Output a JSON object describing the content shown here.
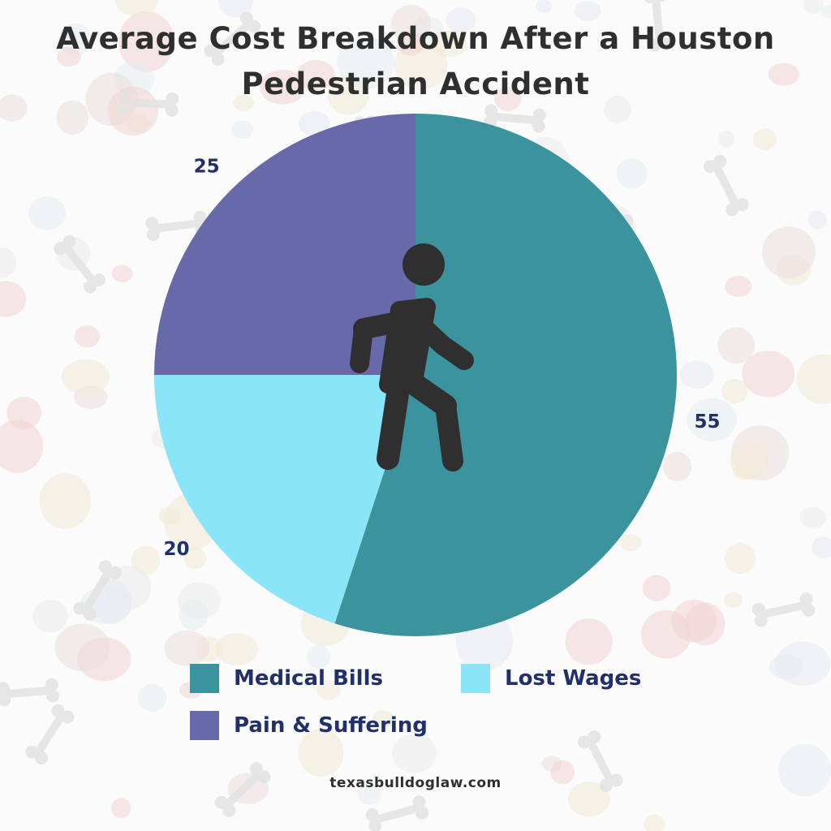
{
  "header": {
    "title": "Average Cost Breakdown After a Houston Pedestrian Accident"
  },
  "chart_data": {
    "type": "pie",
    "categories": [
      "Medical Bills",
      "Lost Wages",
      "Pain & Suffering"
    ],
    "values": [
      55,
      20,
      25
    ],
    "data_labels": [
      "55",
      "20",
      "25"
    ],
    "colors": [
      "#3a939d",
      "#8ae5f8",
      "#6769a8"
    ],
    "legend_position": "bottom",
    "center_icon": "pedestrian-walking-icon"
  },
  "footer": {
    "site": "texasbulldoglaw.com"
  }
}
